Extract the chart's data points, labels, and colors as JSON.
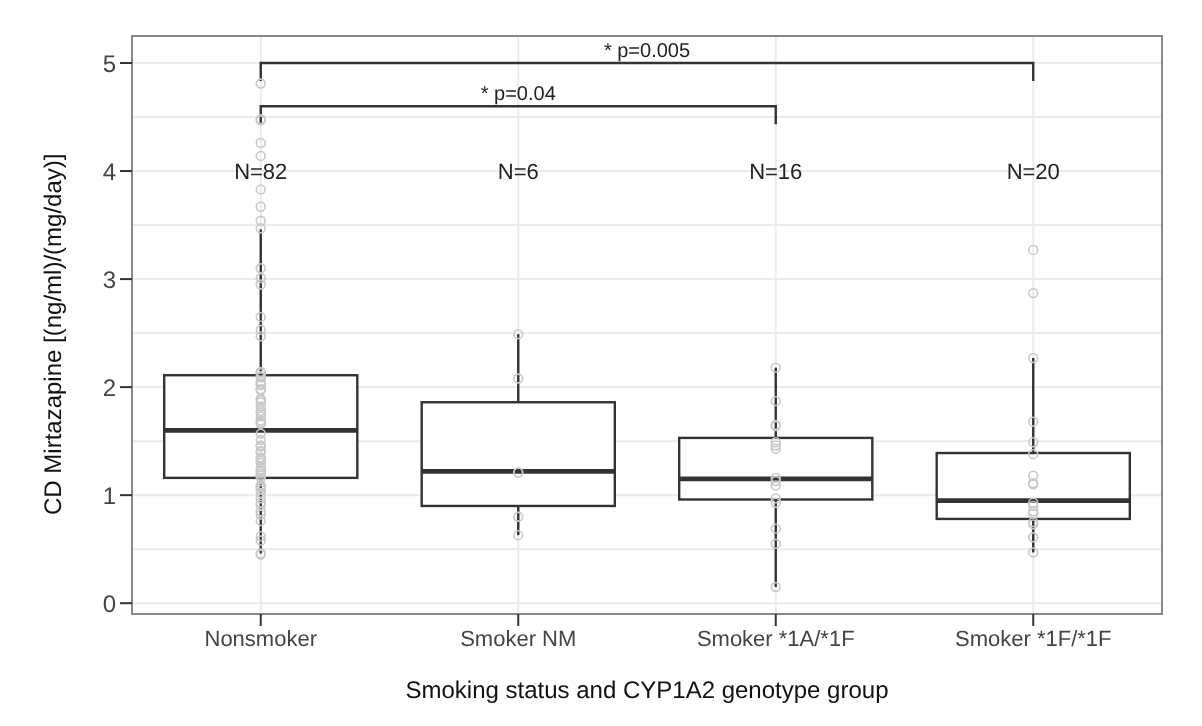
{
  "chart_data": {
    "type": "box",
    "xlabel": "Smoking status and CYP1A2 genotype group",
    "ylabel": "CD Mirtazapine [(ng/ml)/(mg/day)]",
    "categories": [
      "Nonsmoker",
      "Smoker NM",
      "Smoker *1A/*1F",
      "Smoker *1F/*1F"
    ],
    "ylim": [
      -0.1,
      5.25
    ],
    "yticks": [
      0,
      1,
      2,
      3,
      4,
      5
    ],
    "grid": true,
    "legend": false,
    "series": [
      {
        "color": "#333333",
        "boxes": [
          {
            "low": 0.46,
            "q1": 1.16,
            "median": 1.6,
            "q3": 2.11,
            "high": 3.46
          },
          {
            "low": 0.63,
            "q1": 0.9,
            "median": 1.22,
            "q3": 1.86,
            "high": 2.49
          },
          {
            "low": 0.15,
            "q1": 0.96,
            "median": 1.15,
            "q3": 1.53,
            "high": 2.18
          },
          {
            "low": 0.47,
            "q1": 0.78,
            "median": 0.95,
            "q3": 1.39,
            "high": 2.27
          }
        ]
      },
      {
        "type": "scatter",
        "color": "#c8c8c8",
        "marker": "circle",
        "x": [
          "Nonsmoker",
          "Nonsmoker",
          "Nonsmoker",
          "Nonsmoker",
          "Nonsmoker",
          "Nonsmoker",
          "Nonsmoker",
          "Nonsmoker",
          "Nonsmoker",
          "Nonsmoker",
          "Nonsmoker",
          "Nonsmoker",
          "Nonsmoker",
          "Nonsmoker",
          "Nonsmoker",
          "Nonsmoker",
          "Nonsmoker",
          "Nonsmoker",
          "Nonsmoker",
          "Nonsmoker",
          "Nonsmoker",
          "Nonsmoker",
          "Nonsmoker",
          "Nonsmoker",
          "Nonsmoker",
          "Nonsmoker",
          "Nonsmoker",
          "Nonsmoker",
          "Nonsmoker",
          "Nonsmoker",
          "Nonsmoker",
          "Nonsmoker",
          "Nonsmoker",
          "Nonsmoker",
          "Nonsmoker",
          "Nonsmoker",
          "Nonsmoker",
          "Nonsmoker",
          "Nonsmoker",
          "Nonsmoker",
          "Nonsmoker",
          "Nonsmoker",
          "Nonsmoker",
          "Nonsmoker",
          "Nonsmoker",
          "Nonsmoker",
          "Nonsmoker",
          "Nonsmoker",
          "Nonsmoker",
          "Nonsmoker",
          "Nonsmoker",
          "Nonsmoker",
          "Nonsmoker",
          "Nonsmoker",
          "Nonsmoker",
          "Nonsmoker",
          "Nonsmoker",
          "Nonsmoker",
          "Nonsmoker",
          "Nonsmoker",
          "Nonsmoker",
          "Nonsmoker",
          "Nonsmoker",
          "Nonsmoker",
          "Nonsmoker",
          "Smoker NM",
          "Smoker NM",
          "Smoker NM",
          "Smoker NM",
          "Smoker NM",
          "Smoker NM",
          "Smoker *1A/*1F",
          "Smoker *1A/*1F",
          "Smoker *1A/*1F",
          "Smoker *1A/*1F",
          "Smoker *1A/*1F",
          "Smoker *1A/*1F",
          "Smoker *1A/*1F",
          "Smoker *1A/*1F",
          "Smoker *1A/*1F",
          "Smoker *1A/*1F",
          "Smoker *1A/*1F",
          "Smoker *1A/*1F",
          "Smoker *1A/*1F",
          "Smoker *1A/*1F",
          "Smoker *1A/*1F",
          "Smoker *1F/*1F",
          "Smoker *1F/*1F",
          "Smoker *1F/*1F",
          "Smoker *1F/*1F",
          "Smoker *1F/*1F",
          "Smoker *1F/*1F",
          "Smoker *1F/*1F",
          "Smoker *1F/*1F",
          "Smoker *1F/*1F",
          "Smoker *1F/*1F",
          "Smoker *1F/*1F",
          "Smoker *1F/*1F",
          "Smoker *1F/*1F",
          "Smoker *1F/*1F",
          "Smoker *1F/*1F",
          "Smoker *1F/*1F",
          "Smoker *1F/*1F"
        ],
        "values": [
          4.81,
          4.48,
          4.47,
          4.26,
          4.14,
          3.83,
          3.67,
          3.54,
          3.47,
          3.1,
          3.01,
          2.95,
          2.65,
          2.53,
          2.47,
          2.14,
          2.13,
          2.1,
          2.09,
          2.05,
          2.03,
          2.02,
          1.98,
          1.97,
          1.89,
          1.88,
          1.86,
          1.82,
          1.78,
          1.76,
          1.73,
          1.69,
          1.67,
          1.66,
          1.57,
          1.51,
          1.46,
          1.45,
          1.41,
          1.4,
          1.35,
          1.34,
          1.32,
          1.3,
          1.26,
          1.23,
          1.22,
          1.2,
          1.18,
          1.16,
          1.09,
          1.08,
          1.07,
          1.05,
          1.02,
          0.97,
          0.93,
          0.91,
          0.85,
          0.82,
          0.76,
          0.62,
          0.58,
          0.46,
          0.45,
          2.49,
          2.08,
          1.21,
          1.21,
          0.8,
          0.63,
          2.18,
          1.87,
          1.65,
          1.64,
          1.49,
          1.46,
          1.43,
          1.16,
          1.13,
          1.09,
          0.97,
          0.93,
          0.69,
          0.55,
          0.15,
          3.27,
          2.87,
          2.27,
          1.68,
          1.49,
          1.38,
          1.18,
          1.11,
          1.1,
          0.93,
          0.9,
          0.85,
          0.83,
          0.75,
          0.73,
          0.61,
          0.47
        ]
      }
    ],
    "annotations": [
      "* p=0.005",
      "* p=0.04",
      "N=82",
      "N=6",
      "N=16",
      "N=20"
    ]
  }
}
